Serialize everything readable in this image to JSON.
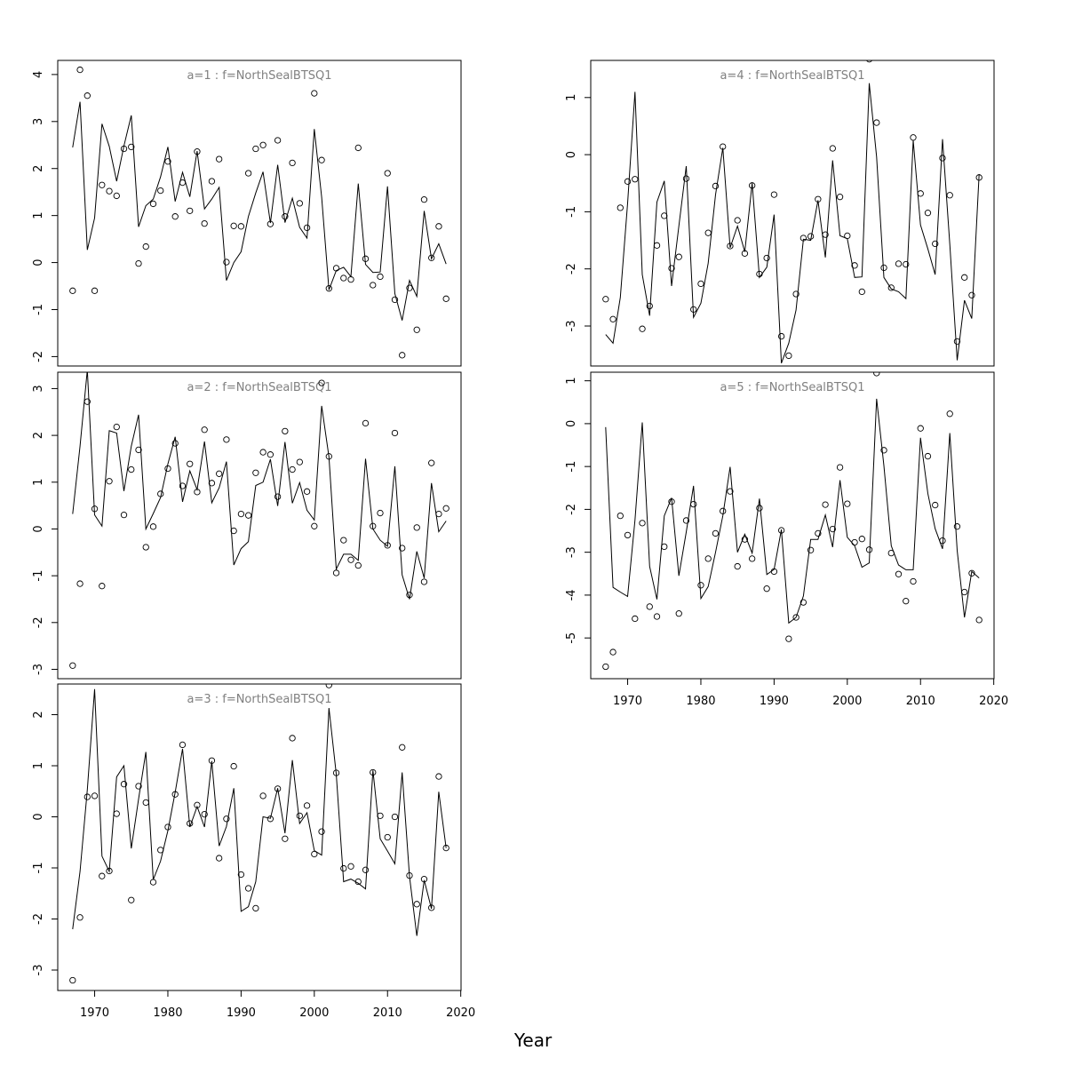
{
  "figure": {
    "xlabel": "Year",
    "x_ticks": [
      1970,
      1980,
      1990,
      2000,
      2010,
      2020
    ]
  },
  "chart_data": [
    {
      "type": "line",
      "title": "a=1 : f=NorthSealBTSQ1",
      "xlabel": "Year",
      "ylabel": "",
      "xlim": [
        1967,
        2018
      ],
      "ylim": [
        -2.2,
        4.3
      ],
      "y_ticks": [
        -2,
        -1,
        0,
        1,
        2,
        3,
        4
      ],
      "x": [
        1967,
        1968,
        1969,
        1970,
        1971,
        1972,
        1973,
        1974,
        1975,
        1976,
        1977,
        1978,
        1979,
        1980,
        1981,
        1982,
        1983,
        1984,
        1985,
        1986,
        1987,
        1988,
        1989,
        1990,
        1991,
        1992,
        1993,
        1994,
        1995,
        1996,
        1997,
        1998,
        1999,
        2000,
        2001,
        2002,
        2003,
        2004,
        2005,
        2006,
        2007,
        2008,
        2009,
        2010,
        2011,
        2012,
        2013,
        2014,
        2015,
        2016,
        2017,
        2018
      ],
      "series": [
        {
          "style": "points",
          "values": [
            -0.6,
            4.1,
            3.55,
            -0.6,
            1.65,
            1.52,
            1.42,
            2.42,
            2.46,
            -0.02,
            0.34,
            1.25,
            1.53,
            2.15,
            0.98,
            1.7,
            1.1,
            2.36,
            0.83,
            1.73,
            2.2,
            0.01,
            0.78,
            0.77,
            1.9,
            2.42,
            2.5,
            0.82,
            2.6,
            0.98,
            2.12,
            1.26,
            0.74,
            3.6,
            2.18,
            -0.55,
            -0.12,
            -0.33,
            -0.36,
            2.44,
            0.08,
            -0.48,
            -0.3,
            1.9,
            -0.79,
            -1.97,
            -0.54,
            -1.43,
            1.34,
            0.1,
            0.77,
            -0.77
          ]
        },
        {
          "style": "line",
          "values": [
            2.45,
            3.42,
            0.27,
            0.95,
            2.95,
            2.47,
            1.73,
            2.48,
            3.13,
            0.76,
            1.21,
            1.35,
            1.82,
            2.46,
            1.3,
            1.92,
            1.4,
            2.37,
            1.14,
            1.35,
            1.6,
            -0.38,
            0.0,
            0.23,
            0.98,
            1.48,
            1.93,
            0.84,
            2.08,
            0.85,
            1.37,
            0.75,
            0.52,
            2.84,
            1.39,
            -0.58,
            -0.17,
            -0.1,
            -0.3,
            1.68,
            -0.04,
            -0.21,
            -0.2,
            1.62,
            -0.66,
            -1.23,
            -0.38,
            -0.72,
            1.1,
            0.08,
            0.4,
            -0.03
          ]
        }
      ]
    },
    {
      "type": "line",
      "title": "a=2 : f=NorthSealBTSQ1",
      "xlabel": "Year",
      "ylabel": "",
      "xlim": [
        1967,
        2018
      ],
      "ylim": [
        -3.2,
        3.35
      ],
      "y_ticks": [
        -3,
        -2,
        -1,
        0,
        1,
        2,
        3
      ],
      "x": [
        1967,
        1968,
        1969,
        1970,
        1971,
        1972,
        1973,
        1974,
        1975,
        1976,
        1977,
        1978,
        1979,
        1980,
        1981,
        1982,
        1983,
        1984,
        1985,
        1986,
        1987,
        1988,
        1989,
        1990,
        1991,
        1992,
        1993,
        1994,
        1995,
        1996,
        1997,
        1998,
        1999,
        2000,
        2001,
        2002,
        2003,
        2004,
        2005,
        2006,
        2007,
        2008,
        2009,
        2010,
        2011,
        2012,
        2013,
        2014,
        2015,
        2016,
        2017,
        2018
      ],
      "series": [
        {
          "style": "points",
          "values": [
            -2.92,
            -1.17,
            2.72,
            0.43,
            -1.22,
            1.02,
            2.18,
            0.3,
            1.27,
            1.69,
            -0.39,
            0.05,
            0.75,
            1.29,
            1.83,
            0.92,
            1.39,
            0.79,
            2.12,
            0.98,
            1.18,
            1.91,
            -0.04,
            0.32,
            0.29,
            1.2,
            1.64,
            1.59,
            0.69,
            2.09,
            1.27,
            1.43,
            0.8,
            0.06,
            3.12,
            1.55,
            -0.94,
            -0.24,
            -0.66,
            -0.78,
            2.26,
            0.06,
            0.34,
            -0.35,
            2.05,
            -0.41,
            -1.41,
            0.03,
            -1.13,
            1.41,
            0.32,
            0.44
          ]
        },
        {
          "style": "line",
          "values": [
            0.32,
            1.77,
            3.4,
            0.3,
            0.06,
            2.1,
            2.05,
            0.81,
            1.77,
            2.44,
            0.0,
            0.33,
            0.67,
            1.39,
            1.97,
            0.58,
            1.24,
            0.84,
            1.87,
            0.56,
            0.88,
            1.44,
            -0.77,
            -0.42,
            -0.27,
            0.93,
            1.0,
            1.49,
            0.49,
            1.86,
            0.55,
            0.99,
            0.4,
            0.19,
            2.63,
            1.54,
            -0.86,
            -0.54,
            -0.54,
            -0.67,
            1.5,
            0.0,
            -0.24,
            -0.37,
            1.34,
            -0.98,
            -1.5,
            -0.48,
            -1.05,
            0.98,
            -0.06,
            0.17
          ]
        }
      ]
    },
    {
      "type": "line",
      "title": "a=3 : f=NorthSealBTSQ1",
      "xlabel": "Year",
      "ylabel": "",
      "xlim": [
        1967,
        2018
      ],
      "ylim": [
        -3.4,
        2.6
      ],
      "y_ticks": [
        -3,
        -2,
        -1,
        0,
        1,
        2
      ],
      "x": [
        1967,
        1968,
        1969,
        1970,
        1971,
        1972,
        1973,
        1974,
        1975,
        1976,
        1977,
        1978,
        1979,
        1980,
        1981,
        1982,
        1983,
        1984,
        1985,
        1986,
        1987,
        1988,
        1989,
        1990,
        1991,
        1992,
        1993,
        1994,
        1995,
        1996,
        1997,
        1998,
        1999,
        2000,
        2001,
        2002,
        2003,
        2004,
        2005,
        2006,
        2007,
        2008,
        2009,
        2010,
        2011,
        2012,
        2013,
        2014,
        2015,
        2016,
        2017,
        2018
      ],
      "series": [
        {
          "style": "points",
          "values": [
            -3.2,
            -1.97,
            0.39,
            0.41,
            -1.16,
            -1.06,
            0.06,
            0.64,
            -1.63,
            0.6,
            0.28,
            -1.28,
            -0.65,
            -0.2,
            0.44,
            1.41,
            -0.13,
            0.23,
            0.05,
            1.1,
            -0.81,
            -0.04,
            0.99,
            -1.13,
            -1.4,
            -1.79,
            0.41,
            -0.04,
            0.55,
            -0.43,
            1.54,
            0.02,
            0.22,
            -0.73,
            -0.29,
            2.58,
            0.86,
            -1.01,
            -0.97,
            -1.27,
            -1.04,
            0.87,
            0.02,
            -0.4,
            0.0,
            1.36,
            -1.15,
            -1.71,
            -1.22,
            -1.78,
            0.79,
            -0.61
          ]
        },
        {
          "style": "line",
          "values": [
            -2.2,
            -1.07,
            0.53,
            2.5,
            -0.77,
            -1.07,
            0.78,
            1.0,
            -0.62,
            0.35,
            1.27,
            -1.23,
            -0.87,
            -0.27,
            0.48,
            1.33,
            -0.2,
            0.2,
            -0.2,
            1.09,
            -0.57,
            -0.19,
            0.56,
            -1.85,
            -1.76,
            -1.27,
            0.0,
            -0.03,
            0.56,
            -0.32,
            1.11,
            -0.13,
            0.08,
            -0.66,
            -0.75,
            2.13,
            0.84,
            -1.27,
            -1.22,
            -1.3,
            -1.41,
            0.91,
            -0.43,
            -0.67,
            -0.92,
            0.87,
            -1.17,
            -2.33,
            -1.24,
            -1.8,
            0.49,
            -0.61
          ]
        }
      ]
    },
    {
      "type": "line",
      "title": "a=4 : f=NorthSealBTSQ1",
      "xlabel": "Year",
      "ylabel": "",
      "xlim": [
        1967,
        2018
      ],
      "ylim": [
        -3.7,
        1.65
      ],
      "y_ticks": [
        -3,
        -2,
        -1,
        0,
        1
      ],
      "x": [
        1967,
        1968,
        1969,
        1970,
        1971,
        1972,
        1973,
        1974,
        1975,
        1976,
        1977,
        1978,
        1979,
        1980,
        1981,
        1982,
        1983,
        1984,
        1985,
        1986,
        1987,
        1988,
        1989,
        1990,
        1991,
        1992,
        1993,
        1994,
        1995,
        1996,
        1997,
        1998,
        1999,
        2000,
        2001,
        2002,
        2003,
        2004,
        2005,
        2006,
        2007,
        2008,
        2009,
        2010,
        2011,
        2012,
        2013,
        2014,
        2015,
        2016,
        2017,
        2018
      ],
      "series": [
        {
          "style": "points",
          "values": [
            -2.53,
            -2.88,
            -0.93,
            -0.47,
            -0.43,
            -3.05,
            -2.65,
            -1.59,
            -1.07,
            -1.99,
            -1.79,
            -0.42,
            -2.71,
            -2.26,
            -1.37,
            -0.55,
            0.14,
            -1.6,
            -1.15,
            -1.73,
            -0.54,
            -2.09,
            -1.81,
            -0.7,
            -3.18,
            -3.52,
            -2.44,
            -1.46,
            -1.43,
            -0.78,
            -1.4,
            0.11,
            -0.74,
            -1.42,
            -1.94,
            -2.4,
            1.67,
            0.56,
            -1.98,
            -2.33,
            -1.91,
            -1.92,
            0.3,
            -0.68,
            -1.02,
            -1.56,
            -0.06,
            -0.71,
            -3.27,
            -2.15,
            -2.46,
            -0.4
          ]
        },
        {
          "style": "line",
          "values": [
            -3.15,
            -3.3,
            -2.5,
            -0.85,
            1.1,
            -2.1,
            -2.82,
            -0.83,
            -0.46,
            -2.3,
            -1.25,
            -0.2,
            -2.85,
            -2.6,
            -1.9,
            -0.7,
            0.12,
            -1.63,
            -1.25,
            -1.7,
            -0.5,
            -2.15,
            -1.97,
            -1.05,
            -3.65,
            -3.3,
            -2.72,
            -1.48,
            -1.5,
            -0.8,
            -1.8,
            -0.1,
            -1.42,
            -1.47,
            -2.15,
            -2.14,
            1.25,
            -0.04,
            -2.15,
            -2.35,
            -2.4,
            -2.52,
            0.25,
            -1.23,
            -1.65,
            -2.1,
            0.27,
            -1.57,
            -3.6,
            -2.55,
            -2.87,
            -0.34
          ]
        }
      ]
    },
    {
      "type": "line",
      "title": "a=5 : f=NorthSealBTSQ1",
      "xlabel": "Year",
      "ylabel": "",
      "xlim": [
        1967,
        2018
      ],
      "ylim": [
        -5.95,
        1.2
      ],
      "y_ticks": [
        -5,
        -4,
        -3,
        -2,
        -1,
        0,
        1
      ],
      "x": [
        1967,
        1968,
        1969,
        1970,
        1971,
        1972,
        1973,
        1974,
        1975,
        1976,
        1977,
        1978,
        1979,
        1980,
        1981,
        1982,
        1983,
        1984,
        1985,
        1986,
        1987,
        1988,
        1989,
        1990,
        1991,
        1992,
        1993,
        1994,
        1995,
        1996,
        1997,
        1998,
        1999,
        2000,
        2001,
        2002,
        2003,
        2004,
        2005,
        2006,
        2007,
        2008,
        2009,
        2010,
        2011,
        2012,
        2013,
        2014,
        2015,
        2016,
        2017,
        2018
      ],
      "series": [
        {
          "style": "points",
          "values": [
            -5.67,
            -5.33,
            -2.15,
            -2.6,
            -4.55,
            -2.32,
            -4.27,
            -4.5,
            -2.87,
            -1.82,
            -4.43,
            -2.26,
            -1.88,
            -3.77,
            -3.15,
            -2.56,
            -2.04,
            -1.58,
            -3.33,
            -2.7,
            -3.15,
            -1.97,
            -3.85,
            -3.45,
            -2.49,
            -5.02,
            -4.52,
            -4.17,
            -2.95,
            -2.56,
            -1.89,
            -2.46,
            -1.02,
            -1.87,
            -2.77,
            -2.69,
            -2.94,
            1.18,
            -0.62,
            -3.02,
            -3.51,
            -4.14,
            -3.68,
            -0.11,
            -0.76,
            -1.9,
            -2.73,
            0.23,
            -2.4,
            -3.93,
            -3.49,
            -4.58
          ]
        },
        {
          "style": "line",
          "values": [
            -0.08,
            -3.82,
            -3.93,
            -4.03,
            -2.25,
            0.03,
            -3.33,
            -4.1,
            -2.15,
            -1.73,
            -3.55,
            -2.53,
            -1.45,
            -4.08,
            -3.8,
            -3.0,
            -2.15,
            -1.01,
            -3.0,
            -2.58,
            -3.02,
            -1.75,
            -3.52,
            -3.4,
            -2.47,
            -4.65,
            -4.52,
            -4.02,
            -2.7,
            -2.7,
            -2.13,
            -2.88,
            -1.32,
            -2.65,
            -2.85,
            -3.35,
            -3.25,
            0.58,
            -0.98,
            -2.85,
            -3.3,
            -3.41,
            -3.41,
            -0.33,
            -1.63,
            -2.45,
            -2.92,
            -0.22,
            -2.96,
            -4.52,
            -3.45,
            -3.6
          ]
        }
      ]
    }
  ]
}
